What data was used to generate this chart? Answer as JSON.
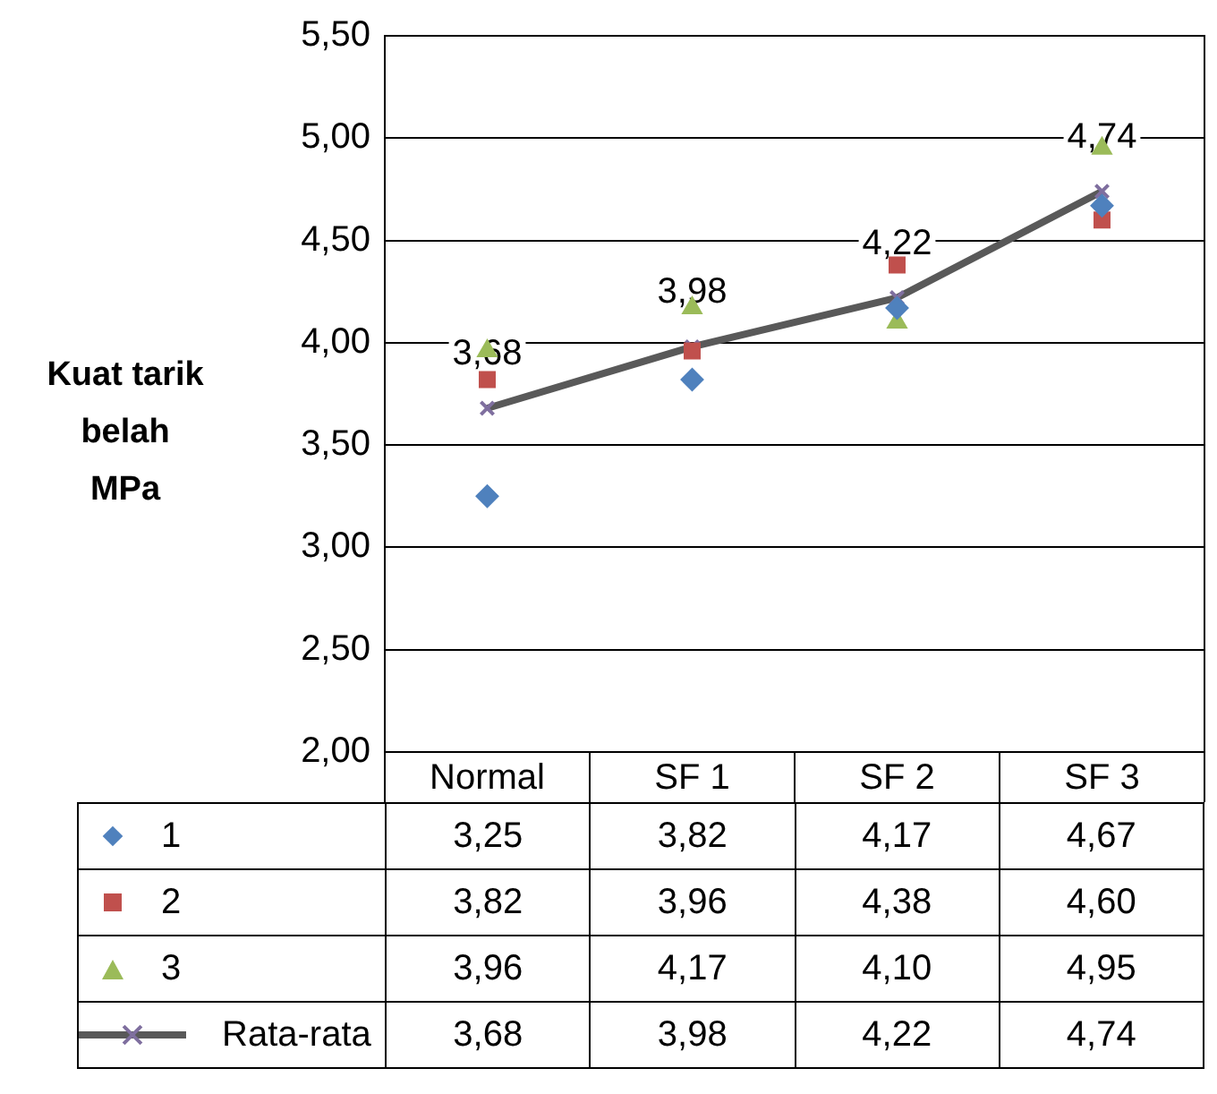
{
  "chart_data": {
    "type": "line",
    "ylabel": "Kuat tarik belah MPa",
    "categories": [
      "Normal",
      "SF 1",
      "SF 2",
      "SF 3"
    ],
    "series": [
      {
        "name": "1",
        "type": "scatter",
        "marker": "diamond",
        "color": "#4f81bd",
        "values": [
          3.25,
          3.82,
          4.17,
          4.67
        ],
        "value_labels": [
          "3,25",
          "3,82",
          "4,17",
          "4,67"
        ]
      },
      {
        "name": "2",
        "type": "scatter",
        "marker": "square",
        "color": "#c0504d",
        "values": [
          3.82,
          3.96,
          4.38,
          4.6
        ],
        "value_labels": [
          "3,82",
          "3,96",
          "4,38",
          "4,60"
        ]
      },
      {
        "name": "3",
        "type": "scatter",
        "marker": "triangle",
        "color": "#9bbb59",
        "values": [
          3.96,
          4.17,
          4.1,
          4.95
        ],
        "value_labels": [
          "3,96",
          "4,17",
          "4,10",
          "4,95"
        ]
      },
      {
        "name": "Rata-rata",
        "marker": "cross",
        "color": "#595959",
        "values": [
          3.68,
          3.98,
          4.22,
          4.74
        ],
        "value_labels": [
          "3,68",
          "3,98",
          "4,22",
          "4,74"
        ]
      }
    ],
    "ylim": [
      2,
      5.5
    ],
    "yticks": [
      {
        "value": 2,
        "label": "2,00"
      },
      {
        "value": 2.5,
        "label": "2,50"
      },
      {
        "value": 3,
        "label": "3,00"
      },
      {
        "value": 3.5,
        "label": "3,50"
      },
      {
        "value": 4,
        "label": "4,00"
      },
      {
        "value": 4.5,
        "label": "4,50"
      },
      {
        "value": 5,
        "label": "5,00"
      },
      {
        "value": 5.5,
        "label": "5,50"
      }
    ],
    "grid": "y",
    "legend": "bottom"
  }
}
